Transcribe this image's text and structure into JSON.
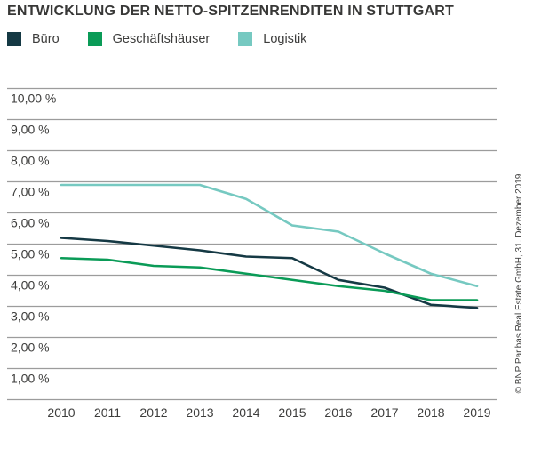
{
  "title": "ENTWICKLUNG DER NETTO-SPITZENRENDITEN IN STUTTGART",
  "source_note": "© BNP Paribas Real Estate GmbH, 31. Dezember 2019",
  "colors": {
    "buero": "#153944",
    "geschaeftshaeuser": "#0a9b57",
    "logistik": "#76c9c1",
    "gridline": "#9c9c9c",
    "text": "#3d3d3c",
    "title": "#383837",
    "background": "#ffffff"
  },
  "chart_data": {
    "type": "line",
    "title": "ENTWICKLUNG DER NETTO-SPITZENRENDITEN IN STUTTGART",
    "categories": [
      "2010",
      "2011",
      "2012",
      "2013",
      "2014",
      "2015",
      "2016",
      "2017",
      "2018",
      "2019"
    ],
    "series": [
      {
        "name": "Büro",
        "color": "#153944",
        "values": [
          5.2,
          5.1,
          4.95,
          4.8,
          4.6,
          4.55,
          3.85,
          3.6,
          3.05,
          2.95
        ]
      },
      {
        "name": "Geschäftshäuser",
        "color": "#0a9b57",
        "values": [
          4.55,
          4.5,
          4.3,
          4.25,
          4.05,
          3.85,
          3.65,
          3.5,
          3.2,
          3.2
        ]
      },
      {
        "name": "Logistik",
        "color": "#76c9c1",
        "values": [
          6.9,
          6.9,
          6.9,
          6.9,
          6.45,
          5.6,
          5.4,
          4.7,
          4.05,
          3.65
        ]
      }
    ],
    "y_ticks": [
      "10,00 %",
      "9,00 %",
      "8,00 %",
      "7,00 %",
      "6,00 %",
      "5,00 %",
      "4,00 %",
      "3,00 %",
      "2,00 %",
      "1,00 %"
    ],
    "ylim": [
      0,
      10
    ],
    "y_unit": "%",
    "xlabel": "",
    "ylabel": "",
    "grid": true,
    "legend_position": "top-left"
  }
}
